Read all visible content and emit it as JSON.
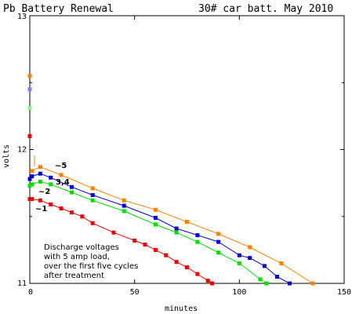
{
  "chart_data": {
    "type": "line",
    "title_left": "Pb Battery Renewal",
    "title_right": "30# car batt. May 2010",
    "xlabel": "minutes",
    "ylabel": "volts",
    "xlim": [
      0,
      150
    ],
    "ylim": [
      11,
      13
    ],
    "xticks": [
      "0",
      "50",
      "100",
      "150"
    ],
    "yticks": [
      "11",
      "12",
      "13"
    ],
    "grid": false,
    "annotation": [
      "Discharge voltages",
      "with 5 amp load,",
      "over the first five cycles",
      "after treatment"
    ],
    "series": [
      {
        "name": "~1",
        "color": "#ee0000",
        "x": [
          0,
          1,
          5,
          10,
          15,
          20,
          25,
          30,
          40,
          50,
          55,
          60,
          65,
          70,
          75,
          80,
          85,
          87
        ],
        "y": [
          11.63,
          11.63,
          11.62,
          11.59,
          11.56,
          11.53,
          11.5,
          11.45,
          11.38,
          11.32,
          11.29,
          11.25,
          11.21,
          11.16,
          11.12,
          11.07,
          11.02,
          11.0
        ]
      },
      {
        "name": "~2",
        "color": "#00dd00",
        "x": [
          0,
          1,
          5,
          10,
          20,
          30,
          45,
          60,
          70,
          80,
          90,
          100,
          110,
          113
        ],
        "y": [
          11.73,
          11.74,
          11.76,
          11.74,
          11.68,
          11.62,
          11.54,
          11.44,
          11.38,
          11.31,
          11.23,
          11.15,
          11.03,
          11.0
        ]
      },
      {
        "name": "3,4",
        "color": "#0000dd",
        "x": [
          0,
          1,
          5,
          10,
          20,
          30,
          45,
          60,
          70,
          80,
          90,
          100,
          105,
          112,
          118,
          124
        ],
        "y": [
          11.78,
          11.8,
          11.82,
          11.79,
          11.72,
          11.66,
          11.58,
          11.49,
          11.41,
          11.36,
          11.31,
          11.21,
          11.19,
          11.13,
          11.05,
          11.0
        ]
      },
      {
        "name": "~5",
        "color": "#ff8000",
        "x": [
          1,
          5,
          15,
          30,
          45,
          60,
          75,
          90,
          105,
          120,
          135
        ],
        "y": [
          11.84,
          11.87,
          11.81,
          11.71,
          11.62,
          11.55,
          11.46,
          11.37,
          11.27,
          11.15,
          11.0
        ]
      }
    ],
    "start_points": [
      {
        "color": "#ff8000",
        "x": 0,
        "y": 12.55
      },
      {
        "color": "#8080ff",
        "x": 0,
        "y": 12.45
      },
      {
        "color": "#80ff80",
        "x": 0,
        "y": 12.31
      },
      {
        "color": "#ee0000",
        "x": 0,
        "y": 12.1
      }
    ]
  }
}
